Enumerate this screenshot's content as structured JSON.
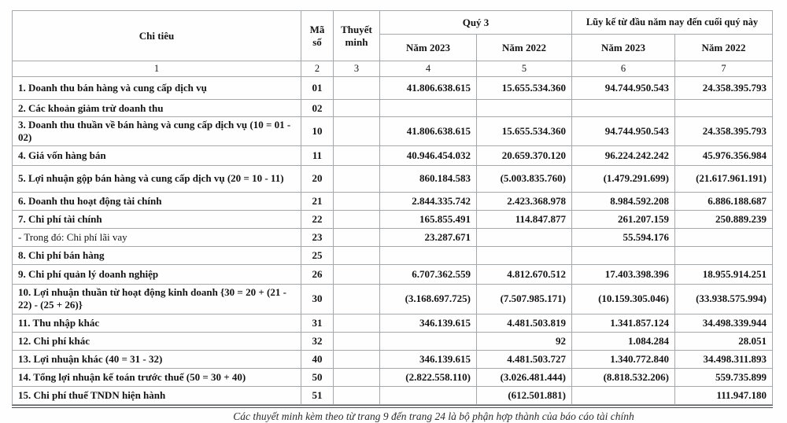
{
  "table": {
    "header": {
      "chi_tieu": "Chi tiêu",
      "ma_so": "Mã số",
      "thuyet_minh": "Thuyết minh",
      "quy_3": "Quý 3",
      "luy_ke": "Lũy kế từ đầu năm nay đến cuối quý này",
      "nam_2023": "Năm 2023",
      "nam_2022": "Năm 2022",
      "col_numbers": [
        "1",
        "2",
        "3",
        "4",
        "5",
        "6",
        "7"
      ]
    },
    "rows": [
      {
        "label": "1. Doanh thu bán hàng và cung cấp dịch vụ",
        "code": "01",
        "note": "",
        "q3_2023": "41.806.638.615",
        "q3_2022": "15.655.534.360",
        "ytd_2023": "94.744.950.543",
        "ytd_2022": "24.358.395.793",
        "sub": false
      },
      {
        "label": "2. Các khoản giảm trừ doanh thu",
        "code": "02",
        "note": "",
        "q3_2023": "",
        "q3_2022": "",
        "ytd_2023": "",
        "ytd_2022": "",
        "sub": false
      },
      {
        "label": "3. Doanh thu thuần về bán hàng và cung cấp dịch vụ (10 = 01 - 02)",
        "code": "10",
        "note": "",
        "q3_2023": "41.806.638.615",
        "q3_2022": "15.655.534.360",
        "ytd_2023": "94.744.950.543",
        "ytd_2022": "24.358.395.793",
        "sub": false
      },
      {
        "label": "4. Giá vốn hàng bán",
        "code": "11",
        "note": "",
        "q3_2023": "40.946.454.032",
        "q3_2022": "20.659.370.120",
        "ytd_2023": "96.224.242.242",
        "ytd_2022": "45.976.356.984",
        "sub": false
      },
      {
        "label": "5. Lợi nhuận gộp bán hàng và cung cấp dịch vụ (20 = 10 - 11)",
        "code": "20",
        "note": "",
        "q3_2023": "860.184.583",
        "q3_2022": "(5.003.835.760)",
        "ytd_2023": "(1.479.291.699)",
        "ytd_2022": "(21.617.961.191)",
        "sub": false
      },
      {
        "label": "6. Doanh thu hoạt động tài chính",
        "code": "21",
        "note": "",
        "q3_2023": "2.844.335.742",
        "q3_2022": "2.423.368.978",
        "ytd_2023": "8.984.592.208",
        "ytd_2022": "6.886.188.687",
        "sub": false
      },
      {
        "label": "7. Chi phí tài chính",
        "code": "22",
        "note": "",
        "q3_2023": "165.855.491",
        "q3_2022": "114.847.877",
        "ytd_2023": "261.207.159",
        "ytd_2022": "250.889.239",
        "sub": false
      },
      {
        "label": "- Trong đó: Chi phí lãi vay",
        "code": "23",
        "note": "",
        "q3_2023": "23.287.671",
        "q3_2022": "",
        "ytd_2023": "55.594.176",
        "ytd_2022": "",
        "sub": true
      },
      {
        "label": "8. Chi phí bán hàng",
        "code": "25",
        "note": "",
        "q3_2023": "",
        "q3_2022": "",
        "ytd_2023": "",
        "ytd_2022": "",
        "sub": false
      },
      {
        "label": "9. Chi phí quản lý doanh nghiệp",
        "code": "26",
        "note": "",
        "q3_2023": "6.707.362.559",
        "q3_2022": "4.812.670.512",
        "ytd_2023": "17.403.398.396",
        "ytd_2022": "18.955.914.251",
        "sub": false
      },
      {
        "label": "10. Lợi nhuận thuần từ hoạt động kinh doanh {30 = 20 + (21 - 22) - (25 + 26)}",
        "code": "30",
        "note": "",
        "q3_2023": "(3.168.697.725)",
        "q3_2022": "(7.507.985.171)",
        "ytd_2023": "(10.159.305.046)",
        "ytd_2022": "(33.938.575.994)",
        "sub": false
      },
      {
        "label": "11. Thu nhập khác",
        "code": "31",
        "note": "",
        "q3_2023": "346.139.615",
        "q3_2022": "4.481.503.819",
        "ytd_2023": "1.341.857.124",
        "ytd_2022": "34.498.339.944",
        "sub": false
      },
      {
        "label": "12. Chi phí khác",
        "code": "32",
        "note": "",
        "q3_2023": "",
        "q3_2022": "92",
        "ytd_2023": "1.084.284",
        "ytd_2022": "28.051",
        "sub": false
      },
      {
        "label": "13. Lợi nhuận khác (40 = 31 - 32)",
        "code": "40",
        "note": "",
        "q3_2023": "346.139.615",
        "q3_2022": "4.481.503.727",
        "ytd_2023": "1.340.772.840",
        "ytd_2022": "34.498.311.893",
        "sub": false
      },
      {
        "label": "14. Tổng lợi nhuận kế toán trước thuế (50 = 30 + 40)",
        "code": "50",
        "note": "",
        "q3_2023": "(2.822.558.110)",
        "q3_2022": "(3.026.481.444)",
        "ytd_2023": "(8.818.532.206)",
        "ytd_2022": "559.735.899",
        "sub": false
      },
      {
        "label": "15. Chi phí thuế TNDN hiện hành",
        "code": "51",
        "note": "",
        "q3_2023": "",
        "q3_2022": "(612.501.881)",
        "ytd_2023": "",
        "ytd_2022": "111.947.180",
        "sub": false
      }
    ],
    "footer_note": "Các thuyết minh kèm theo từ trang 9 đến trang 24 là bộ phận hợp thành của báo cáo tài chính"
  }
}
